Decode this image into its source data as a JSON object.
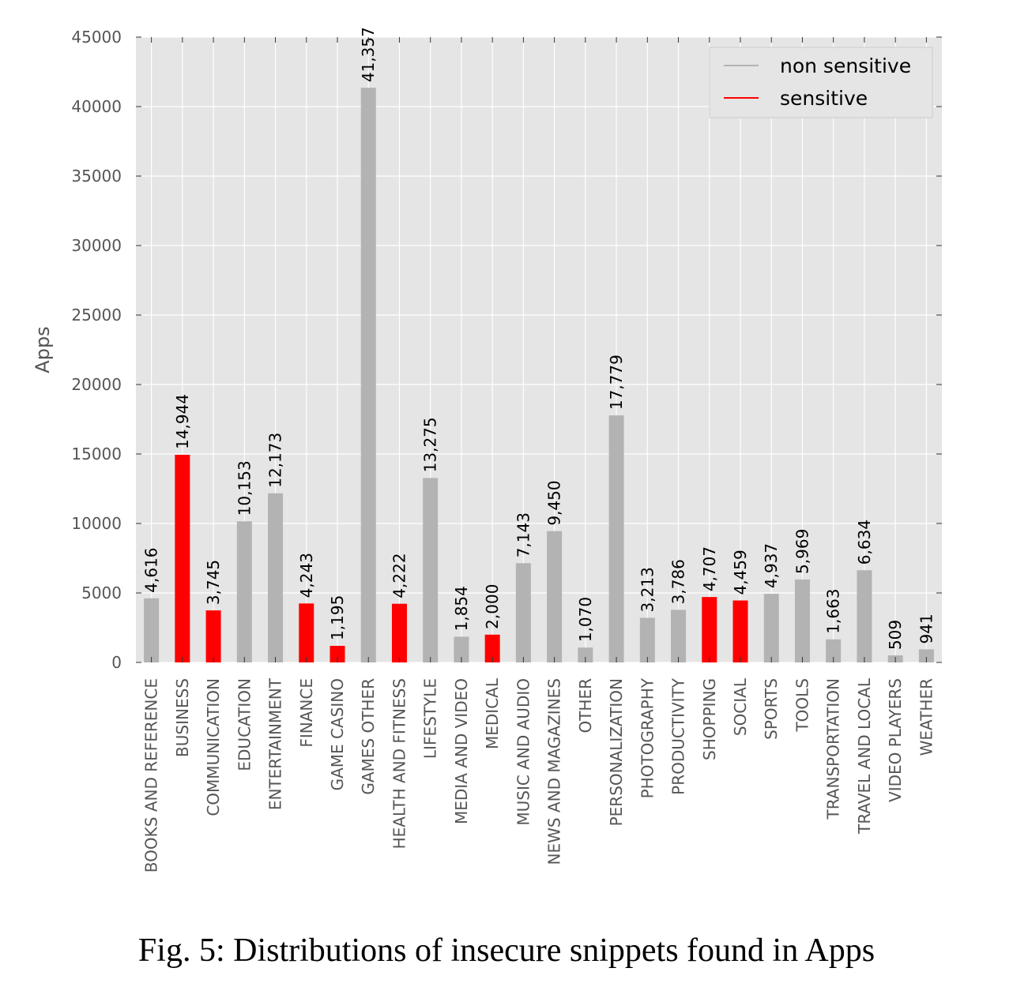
{
  "caption": "Fig. 5: Distributions of insecure snippets found in Apps",
  "chart_data": {
    "type": "bar",
    "ylabel": "Apps",
    "xlabel": "",
    "ylim": [
      0,
      45000
    ],
    "yticks": [
      0,
      5000,
      10000,
      15000,
      20000,
      25000,
      30000,
      35000,
      40000,
      45000
    ],
    "grid": true,
    "legend_position": "top-right",
    "categories": [
      "BOOKS AND REFERENCE",
      "BUSINESS",
      "COMMUNICATION",
      "EDUCATION",
      "ENTERTAINMENT",
      "FINANCE",
      "GAME CASINO",
      "GAMES OTHER",
      "HEALTH AND FITNESS",
      "LIFESTYLE",
      "MEDIA AND VIDEO",
      "MEDICAL",
      "MUSIC AND AUDIO",
      "NEWS AND MAGAZINES",
      "OTHER",
      "PERSONALIZATION",
      "PHOTOGRAPHY",
      "PRODUCTIVITY",
      "SHOPPING",
      "SOCIAL",
      "SPORTS",
      "TOOLS",
      "TRANSPORTATION",
      "TRAVEL AND LOCAL",
      "VIDEO PLAYERS",
      "WEATHER"
    ],
    "values": [
      4616,
      14944,
      3745,
      10153,
      12173,
      4243,
      1195,
      41357,
      4222,
      13275,
      1854,
      2000,
      7143,
      9450,
      1070,
      17779,
      3213,
      3786,
      4707,
      4459,
      4937,
      5969,
      1663,
      6634,
      509,
      941
    ],
    "value_labels": [
      "4,616",
      "14,944",
      "3,745",
      "10,153",
      "12,173",
      "4,243",
      "1,195",
      "41,357",
      "4,222",
      "13,275",
      "1,854",
      "2,000",
      "7,143",
      "9,450",
      "1,070",
      "17,779",
      "3,213",
      "3,786",
      "4,707",
      "4,459",
      "4,937",
      "5,969",
      "1,663",
      "6,634",
      "509",
      "941"
    ],
    "sensitive": [
      false,
      true,
      true,
      false,
      false,
      true,
      true,
      false,
      true,
      false,
      false,
      true,
      false,
      false,
      false,
      false,
      false,
      false,
      true,
      true,
      false,
      false,
      false,
      false,
      false,
      false
    ],
    "series": [
      {
        "name": "non sensitive",
        "color": "#b3b3b3"
      },
      {
        "name": "sensitive",
        "color": "#ff0000"
      }
    ],
    "plot_background": "#e5e5e5",
    "grid_color": "#ffffff"
  }
}
